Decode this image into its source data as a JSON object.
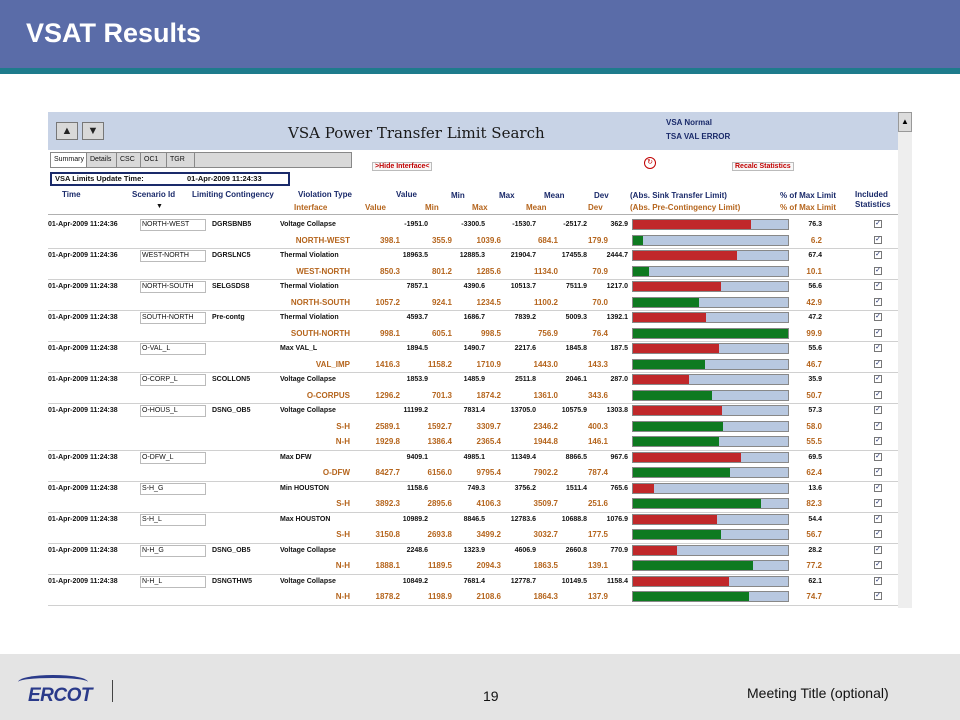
{
  "slide": {
    "title": "VSAT Results"
  },
  "app": {
    "title": "VSA Power Transfer Limit Search",
    "status": [
      "VSA Normal",
      "TSA VAL ERROR"
    ],
    "nav_up": "▲",
    "nav_down": "▼",
    "tabs": [
      "Summary",
      "Details",
      "CSC",
      "OC1",
      "TGR"
    ],
    "update_label": "VSA Limits Update Time:",
    "update_time": "01-Apr-2009 11:24:33",
    "hide_interface": ">Hide Interface<",
    "recalc": "Recalc Statistics"
  },
  "headers": {
    "time": "Time",
    "scenario": "Scenario Id",
    "contingency": "Limiting Contingency",
    "violation": "Violation Type",
    "value": "Value",
    "min": "Min",
    "max": "Max",
    "mean": "Mean",
    "dev": "Dev",
    "abs_sink": "(Abs. Sink Transfer Limit)",
    "pct_max": "% of Max Limit",
    "included": "Included",
    "statistics": "Statistics",
    "interface": "Interface",
    "value2": "Value",
    "min2": "Min",
    "max2": "Max",
    "mean2": "Mean",
    "dev2": "Dev",
    "abs_pre": "(Abs. Pre-Contingency Limit)",
    "pct_max2": "% of Max Limit"
  },
  "groups": [
    {
      "time": "01-Apr-2009 11:24:36",
      "scenario": "NORTH-WEST",
      "contingency": "DGRSBNB5",
      "violation": "Voltage Collapse",
      "value": "-1951.0",
      "min": "-3300.5",
      "max": "-1530.7",
      "mean": "-2517.2",
      "dev": "362.9",
      "pct": "76.3",
      "interfaces": [
        {
          "name": "NORTH-WEST",
          "value": "398.1",
          "min": "355.9",
          "max": "1039.6",
          "mean": "684.1",
          "dev": "179.9",
          "pct": "6.2"
        }
      ]
    },
    {
      "time": "01-Apr-2009 11:24:36",
      "scenario": "WEST-NORTH",
      "contingency": "DGRSLNC5",
      "violation": "Thermal Violation",
      "value": "18963.5",
      "min": "12885.3",
      "max": "21904.7",
      "mean": "17455.8",
      "dev": "2444.7",
      "pct": "67.4",
      "interfaces": [
        {
          "name": "WEST-NORTH",
          "value": "850.3",
          "min": "801.2",
          "max": "1285.6",
          "mean": "1134.0",
          "dev": "70.9",
          "pct": "10.1"
        }
      ]
    },
    {
      "time": "01-Apr-2009 11:24:38",
      "scenario": "NORTH-SOUTH",
      "contingency": "SELGSDS8",
      "violation": "Thermal Violation",
      "value": "7857.1",
      "min": "4390.6",
      "max": "10513.7",
      "mean": "7511.9",
      "dev": "1217.0",
      "pct": "56.6",
      "interfaces": [
        {
          "name": "NORTH-SOUTH",
          "value": "1057.2",
          "min": "924.1",
          "max": "1234.5",
          "mean": "1100.2",
          "dev": "70.0",
          "pct": "42.9"
        }
      ]
    },
    {
      "time": "01-Apr-2009 11:24:38",
      "scenario": "SOUTH-NORTH",
      "contingency": "Pre-contg",
      "violation": "Thermal Violation",
      "value": "4593.7",
      "min": "1686.7",
      "max": "7839.2",
      "mean": "5009.3",
      "dev": "1392.1",
      "pct": "47.2",
      "interfaces": [
        {
          "name": "SOUTH-NORTH",
          "value": "998.1",
          "min": "605.1",
          "max": "998.5",
          "mean": "756.9",
          "dev": "76.4",
          "pct": "99.9"
        }
      ]
    },
    {
      "time": "01-Apr-2009 11:24:38",
      "scenario": "O-VAL_L",
      "contingency": "",
      "violation": "Max VAL_L",
      "value": "1894.5",
      "min": "1490.7",
      "max": "2217.6",
      "mean": "1845.8",
      "dev": "187.5",
      "pct": "55.6",
      "interfaces": [
        {
          "name": "VAL_IMP",
          "value": "1416.3",
          "min": "1158.2",
          "max": "1710.9",
          "mean": "1443.0",
          "dev": "143.3",
          "pct": "46.7"
        }
      ]
    },
    {
      "time": "01-Apr-2009 11:24:38",
      "scenario": "O-CORP_L",
      "contingency": "SCOLLON5",
      "violation": "Voltage Collapse",
      "value": "1853.9",
      "min": "1485.9",
      "max": "2511.8",
      "mean": "2046.1",
      "dev": "287.0",
      "pct": "35.9",
      "interfaces": [
        {
          "name": "O-CORPUS",
          "value": "1296.2",
          "min": "701.3",
          "max": "1874.2",
          "mean": "1361.0",
          "dev": "343.6",
          "pct": "50.7"
        }
      ]
    },
    {
      "time": "01-Apr-2009 11:24:38",
      "scenario": "O-HOUS_L",
      "contingency": "DSNG_OB5",
      "violation": "Voltage Collapse",
      "value": "11199.2",
      "min": "7831.4",
      "max": "13705.0",
      "mean": "10575.9",
      "dev": "1303.8",
      "pct": "57.3",
      "interfaces": [
        {
          "name": "S-H",
          "value": "2589.1",
          "min": "1592.7",
          "max": "3309.7",
          "mean": "2346.2",
          "dev": "400.3",
          "pct": "58.0"
        },
        {
          "name": "N-H",
          "value": "1929.8",
          "min": "1386.4",
          "max": "2365.4",
          "mean": "1944.8",
          "dev": "146.1",
          "pct": "55.5"
        }
      ]
    },
    {
      "time": "01-Apr-2009 11:24:38",
      "scenario": "O-DFW_L",
      "contingency": "",
      "violation": "Max DFW",
      "value": "9409.1",
      "min": "4985.1",
      "max": "11349.4",
      "mean": "8866.5",
      "dev": "967.6",
      "pct": "69.5",
      "interfaces": [
        {
          "name": "O-DFW",
          "value": "8427.7",
          "min": "6156.0",
          "max": "9795.4",
          "mean": "7902.2",
          "dev": "787.4",
          "pct": "62.4"
        }
      ]
    },
    {
      "time": "01-Apr-2009 11:24:38",
      "scenario": "S-H_G",
      "contingency": "",
      "violation": "Min HOUSTON",
      "value": "1158.6",
      "min": "749.3",
      "max": "3756.2",
      "mean": "1511.4",
      "dev": "765.6",
      "pct": "13.6",
      "interfaces": [
        {
          "name": "S-H",
          "value": "3892.3",
          "min": "2895.6",
          "max": "4106.3",
          "mean": "3509.7",
          "dev": "251.6",
          "pct": "82.3"
        }
      ]
    },
    {
      "time": "01-Apr-2009 11:24:38",
      "scenario": "S-H_L",
      "contingency": "",
      "violation": "Max HOUSTON",
      "value": "10989.2",
      "min": "8846.5",
      "max": "12783.6",
      "mean": "10688.8",
      "dev": "1076.9",
      "pct": "54.4",
      "interfaces": [
        {
          "name": "S-H",
          "value": "3150.8",
          "min": "2693.8",
          "max": "3499.2",
          "mean": "3032.7",
          "dev": "177.5",
          "pct": "56.7"
        }
      ]
    },
    {
      "time": "01-Apr-2009 11:24:38",
      "scenario": "N-H_G",
      "contingency": "DSNG_OB5",
      "violation": "Voltage Collapse",
      "value": "2248.6",
      "min": "1323.9",
      "max": "4606.9",
      "mean": "2660.8",
      "dev": "770.9",
      "pct": "28.2",
      "interfaces": [
        {
          "name": "N-H",
          "value": "1888.1",
          "min": "1189.5",
          "max": "2094.3",
          "mean": "1863.5",
          "dev": "139.1",
          "pct": "77.2"
        }
      ]
    },
    {
      "time": "01-Apr-2009 11:24:38",
      "scenario": "N-H_L",
      "contingency": "DSNGTHW5",
      "violation": "Voltage Collapse",
      "value": "10849.2",
      "min": "7681.4",
      "max": "12778.7",
      "mean": "10149.5",
      "dev": "1158.4",
      "pct": "62.1",
      "interfaces": [
        {
          "name": "N-H",
          "value": "1878.2",
          "min": "1198.9",
          "max": "2108.6",
          "mean": "1864.3",
          "dev": "137.9",
          "pct": "74.7"
        }
      ]
    }
  ],
  "colors": {
    "sink_bar": "#c0282a",
    "pre_bar": "#0e7a20",
    "bar_bg": "#b8c8e0",
    "title_bg": "#5a6ca8"
  },
  "footer": {
    "logo": "ERCOT",
    "page": "19",
    "meeting": "Meeting Title (optional)"
  }
}
